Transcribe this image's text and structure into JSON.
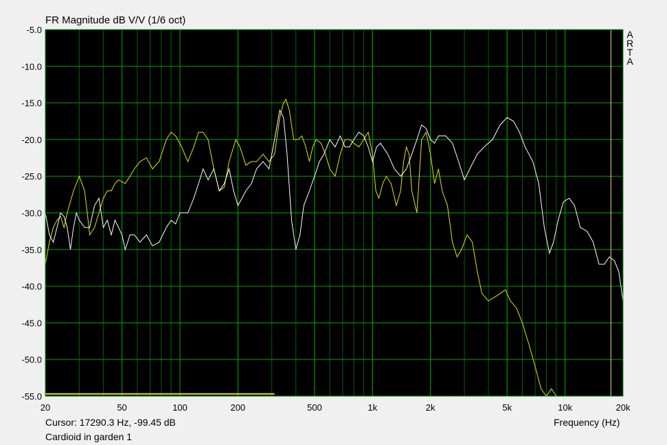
{
  "chart_data": {
    "type": "line",
    "title": "FR Magnitude dB V/V (1/6 oct)",
    "xlabel": "Frequency (Hz)",
    "ylabel": "",
    "x_scale": "log",
    "xlim": [
      20,
      20000
    ],
    "ylim": [
      -55,
      -5
    ],
    "grid": true,
    "y_ticks": [
      -5.0,
      -10.0,
      -15.0,
      -20.0,
      -25.0,
      -30.0,
      -35.0,
      -40.0,
      -45.0,
      -50.0,
      -55.0
    ],
    "y_tick_labels": [
      "-5.0",
      "-10.0",
      "-15.0",
      "-20.0",
      "-25.0",
      "-30.0",
      "-35.0",
      "-40.0",
      "-45.0",
      "-50.0",
      "-55.0"
    ],
    "x_ticks": [
      20,
      50,
      100,
      200,
      500,
      1000,
      2000,
      5000,
      10000,
      20000
    ],
    "x_tick_labels": [
      "20",
      "50",
      "100",
      "200",
      "500",
      "1k",
      "2k",
      "5k",
      "10k",
      "20k"
    ],
    "cursor_x": 17290.3,
    "series": [
      {
        "color": "#e6e600",
        "points": [
          [
            20,
            -37
          ],
          [
            21,
            -34
          ],
          [
            22,
            -32
          ],
          [
            23,
            -31
          ],
          [
            24,
            -30.5
          ],
          [
            25,
            -32
          ],
          [
            26,
            -30
          ],
          [
            28,
            -27
          ],
          [
            30,
            -25
          ],
          [
            32,
            -27
          ],
          [
            33,
            -30
          ],
          [
            34,
            -33
          ],
          [
            36,
            -32
          ],
          [
            38,
            -30
          ],
          [
            40,
            -28
          ],
          [
            42,
            -27
          ],
          [
            44,
            -27
          ],
          [
            46,
            -26
          ],
          [
            48,
            -25.5
          ],
          [
            52,
            -26
          ],
          [
            55,
            -25
          ],
          [
            58,
            -24
          ],
          [
            62,
            -23
          ],
          [
            67,
            -22.5
          ],
          [
            72,
            -24
          ],
          [
            78,
            -23
          ],
          [
            85,
            -20
          ],
          [
            90,
            -19
          ],
          [
            95,
            -19.5
          ],
          [
            102,
            -21
          ],
          [
            110,
            -23
          ],
          [
            118,
            -21
          ],
          [
            125,
            -19
          ],
          [
            132,
            -19
          ],
          [
            140,
            -20
          ],
          [
            150,
            -24
          ],
          [
            160,
            -27
          ],
          [
            170,
            -26.5
          ],
          [
            180,
            -23
          ],
          [
            195,
            -20
          ],
          [
            205,
            -21
          ],
          [
            220,
            -23.5
          ],
          [
            235,
            -23
          ],
          [
            250,
            -23
          ],
          [
            270,
            -22
          ],
          [
            290,
            -23
          ],
          [
            310,
            -22
          ],
          [
            330,
            -17
          ],
          [
            345,
            -15
          ],
          [
            355,
            -14.5
          ],
          [
            370,
            -16
          ],
          [
            390,
            -20
          ],
          [
            410,
            -20
          ],
          [
            430,
            -19.5
          ],
          [
            450,
            -21
          ],
          [
            470,
            -23
          ],
          [
            490,
            -21
          ],
          [
            510,
            -20
          ],
          [
            540,
            -20.5
          ],
          [
            570,
            -22
          ],
          [
            600,
            -24
          ],
          [
            640,
            -25
          ],
          [
            680,
            -22
          ],
          [
            720,
            -20
          ],
          [
            760,
            -20
          ],
          [
            800,
            -20.5
          ],
          [
            850,
            -21
          ],
          [
            900,
            -20
          ],
          [
            950,
            -19
          ],
          [
            1000,
            -22
          ],
          [
            1040,
            -27
          ],
          [
            1080,
            -28
          ],
          [
            1130,
            -26
          ],
          [
            1180,
            -25
          ],
          [
            1250,
            -26
          ],
          [
            1330,
            -29
          ],
          [
            1400,
            -27
          ],
          [
            1450,
            -23
          ],
          [
            1500,
            -21
          ],
          [
            1550,
            -22
          ],
          [
            1600,
            -27
          ],
          [
            1700,
            -30
          ],
          [
            1800,
            -20
          ],
          [
            1900,
            -19
          ],
          [
            2000,
            -22
          ],
          [
            2100,
            -26
          ],
          [
            2200,
            -24
          ],
          [
            2300,
            -27
          ],
          [
            2450,
            -29
          ],
          [
            2600,
            -34
          ],
          [
            2750,
            -36
          ],
          [
            2900,
            -35
          ],
          [
            3100,
            -33
          ],
          [
            3300,
            -34
          ],
          [
            3500,
            -38
          ],
          [
            3700,
            -41
          ],
          [
            4000,
            -42
          ],
          [
            4300,
            -41.5
          ],
          [
            4600,
            -41
          ],
          [
            4900,
            -40.5
          ],
          [
            5200,
            -42
          ],
          [
            5600,
            -43
          ],
          [
            6000,
            -45
          ],
          [
            6500,
            -48
          ],
          [
            7000,
            -51
          ],
          [
            7500,
            -54
          ],
          [
            8000,
            -55
          ],
          [
            8500,
            -54
          ],
          [
            9000,
            -55
          ]
        ]
      },
      {
        "color": "#ffffff",
        "points": [
          [
            20,
            -30
          ],
          [
            21,
            -33
          ],
          [
            22,
            -34
          ],
          [
            23,
            -32
          ],
          [
            24,
            -30
          ],
          [
            25,
            -30.5
          ],
          [
            26,
            -32
          ],
          [
            27,
            -35
          ],
          [
            28,
            -32
          ],
          [
            29,
            -30
          ],
          [
            30,
            -31
          ],
          [
            32,
            -32
          ],
          [
            34,
            -32
          ],
          [
            36,
            -29
          ],
          [
            38,
            -28
          ],
          [
            40,
            -32
          ],
          [
            42,
            -31
          ],
          [
            44,
            -33
          ],
          [
            46,
            -31
          ],
          [
            48,
            -32
          ],
          [
            50,
            -33
          ],
          [
            52,
            -35
          ],
          [
            55,
            -33
          ],
          [
            58,
            -33
          ],
          [
            62,
            -34
          ],
          [
            67,
            -33
          ],
          [
            72,
            -34.5
          ],
          [
            78,
            -34
          ],
          [
            85,
            -32
          ],
          [
            90,
            -31
          ],
          [
            95,
            -31.5
          ],
          [
            100,
            -30
          ],
          [
            105,
            -30
          ],
          [
            110,
            -30
          ],
          [
            118,
            -28
          ],
          [
            125,
            -26
          ],
          [
            132,
            -24
          ],
          [
            140,
            -25.5
          ],
          [
            150,
            -24
          ],
          [
            160,
            -27
          ],
          [
            170,
            -26
          ],
          [
            180,
            -24
          ],
          [
            190,
            -27
          ],
          [
            200,
            -29
          ],
          [
            210,
            -28
          ],
          [
            220,
            -27
          ],
          [
            235,
            -26
          ],
          [
            250,
            -24
          ],
          [
            270,
            -23
          ],
          [
            290,
            -24
          ],
          [
            310,
            -20
          ],
          [
            330,
            -16
          ],
          [
            345,
            -17
          ],
          [
            360,
            -22
          ],
          [
            380,
            -31
          ],
          [
            400,
            -35
          ],
          [
            420,
            -33
          ],
          [
            440,
            -29
          ],
          [
            470,
            -27
          ],
          [
            500,
            -25
          ],
          [
            530,
            -23
          ],
          [
            560,
            -22
          ],
          [
            600,
            -20
          ],
          [
            640,
            -21
          ],
          [
            680,
            -19.5
          ],
          [
            720,
            -21
          ],
          [
            760,
            -21
          ],
          [
            800,
            -20
          ],
          [
            850,
            -19
          ],
          [
            900,
            -19.5
          ],
          [
            950,
            -21
          ],
          [
            1000,
            -23
          ],
          [
            1050,
            -21
          ],
          [
            1100,
            -20.5
          ],
          [
            1200,
            -22
          ],
          [
            1300,
            -24
          ],
          [
            1400,
            -25
          ],
          [
            1500,
            -24
          ],
          [
            1600,
            -22
          ],
          [
            1700,
            -20
          ],
          [
            1800,
            -18
          ],
          [
            1900,
            -18.5
          ],
          [
            2000,
            -20
          ],
          [
            2100,
            -20.5
          ],
          [
            2200,
            -19.5
          ],
          [
            2400,
            -19.5
          ],
          [
            2600,
            -20.5
          ],
          [
            2800,
            -23
          ],
          [
            3000,
            -25.5
          ],
          [
            3200,
            -24
          ],
          [
            3500,
            -22
          ],
          [
            3800,
            -21
          ],
          [
            4200,
            -20
          ],
          [
            4600,
            -18
          ],
          [
            5000,
            -17
          ],
          [
            5400,
            -17.5
          ],
          [
            5800,
            -19
          ],
          [
            6200,
            -21
          ],
          [
            6800,
            -23
          ],
          [
            7300,
            -26
          ],
          [
            7800,
            -32
          ],
          [
            8300,
            -35.5
          ],
          [
            8700,
            -34
          ],
          [
            9200,
            -31
          ],
          [
            9800,
            -28.5
          ],
          [
            10500,
            -28
          ],
          [
            11200,
            -29
          ],
          [
            12000,
            -32
          ],
          [
            13000,
            -32.5
          ],
          [
            14000,
            -34
          ],
          [
            15000,
            -37
          ],
          [
            16000,
            -37
          ],
          [
            17000,
            -36
          ],
          [
            18000,
            -36.5
          ],
          [
            19000,
            -38
          ],
          [
            20000,
            -42
          ]
        ]
      }
    ],
    "extra_segment": {
      "color": "#e6e600",
      "x": [
        20,
        310
      ],
      "y": -54.7
    }
  },
  "footer": {
    "cursor_text": "Cursor: 17290.3 Hz, -99.45 dB",
    "caption": "Cardioid in garden 1"
  },
  "watermark": [
    "A",
    "R",
    "T",
    "A"
  ]
}
